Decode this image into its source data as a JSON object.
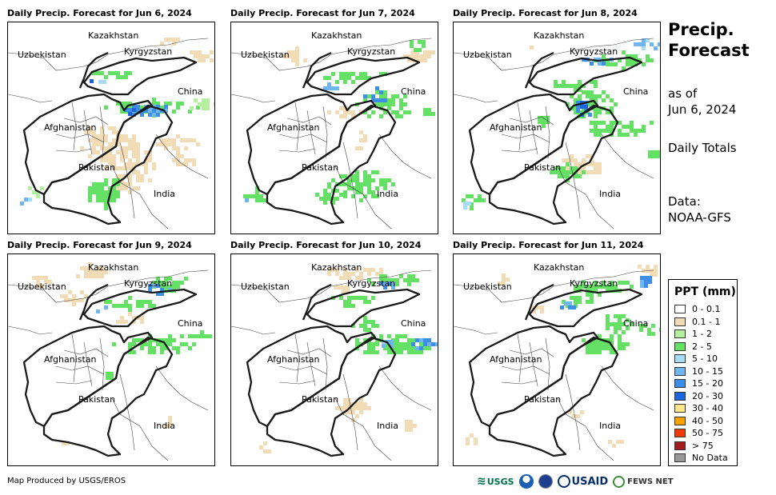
{
  "panels": [
    {
      "title": "Daily Precip. Forecast for Jun 6, 2024"
    },
    {
      "title": "Daily Precip. Forecast for Jun 7, 2024"
    },
    {
      "title": "Daily Precip. Forecast for Jun 8, 2024"
    },
    {
      "title": "Daily Precip. Forecast for Jun 9, 2024"
    },
    {
      "title": "Daily Precip. Forecast for Jun 10, 2024"
    },
    {
      "title": "Daily Precip. Forecast for Jun 11, 2024"
    }
  ],
  "countries": {
    "kazakhstan": "Kazakhstan",
    "uzbekistan": "Uzbekistan",
    "kyrgyzstan": "Kyrgyzstan",
    "china": "China",
    "afghanistan": "Afghanistan",
    "pakistan": "Pakistan",
    "india": "India"
  },
  "side": {
    "title_line1": "Precip.",
    "title_line2": "Forecast",
    "asof_line1": "as of",
    "asof_line2": "Jun 6, 2024",
    "daily": "Daily Totals",
    "data_line1": "Data:",
    "data_line2": "NOAA-GFS"
  },
  "legend": {
    "title": "PPT (mm)",
    "items": [
      {
        "label": "0 - 0.1",
        "color": "#ffffff"
      },
      {
        "label": "0.1 - 1",
        "color": "#f2dcb6"
      },
      {
        "label": "1 - 2",
        "color": "#b4f0a0"
      },
      {
        "label": "2 - 5",
        "color": "#64e064"
      },
      {
        "label": "5 - 10",
        "color": "#a6dcf5"
      },
      {
        "label": "10 - 15",
        "color": "#6fb6f0"
      },
      {
        "label": "15 - 20",
        "color": "#3c8ee6"
      },
      {
        "label": "20 - 30",
        "color": "#1e64dc"
      },
      {
        "label": "30 - 40",
        "color": "#fde68c"
      },
      {
        "label": "40 - 50",
        "color": "#fca000"
      },
      {
        "label": "50 - 75",
        "color": "#f03c00"
      },
      {
        "label": "> 75",
        "color": "#a01e1e"
      },
      {
        "label": "No Data",
        "color": "#999999"
      }
    ]
  },
  "footer": "Map Produced by USGS/EROS",
  "logos": {
    "usgs": "USGS",
    "usaid": "USAID",
    "fewsnet": "FEWS NET"
  }
}
